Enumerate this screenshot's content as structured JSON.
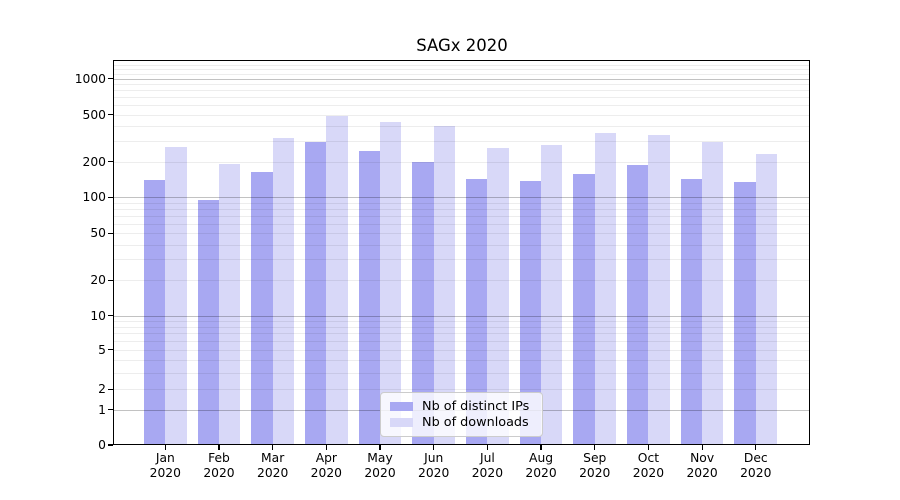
{
  "chart_data": {
    "type": "bar",
    "title": "SAGx 2020",
    "categories": [
      "Jan",
      "Feb",
      "Mar",
      "Apr",
      "May",
      "Jun",
      "Jul",
      "Aug",
      "Sep",
      "Oct",
      "Nov",
      "Dec"
    ],
    "category_year": "2020",
    "series": [
      {
        "name": "Nb of distinct IPs",
        "color": "#a8a8f2",
        "values": [
          140,
          95,
          163,
          295,
          246,
          198,
          142,
          138,
          158,
          188,
          143,
          134
        ]
      },
      {
        "name": "Nb of downloads",
        "color": "#d8d8f8",
        "values": [
          265,
          190,
          320,
          490,
          435,
          400,
          263,
          275,
          347,
          334,
          295,
          231
        ]
      }
    ],
    "yscale": "asinh",
    "yticks": [
      0,
      1,
      2,
      5,
      10,
      20,
      50,
      100,
      200,
      500,
      1000
    ],
    "ylim": [
      0,
      1400
    ],
    "grid": "horizontal, major and minor",
    "legend_position": "inside lower-center"
  }
}
